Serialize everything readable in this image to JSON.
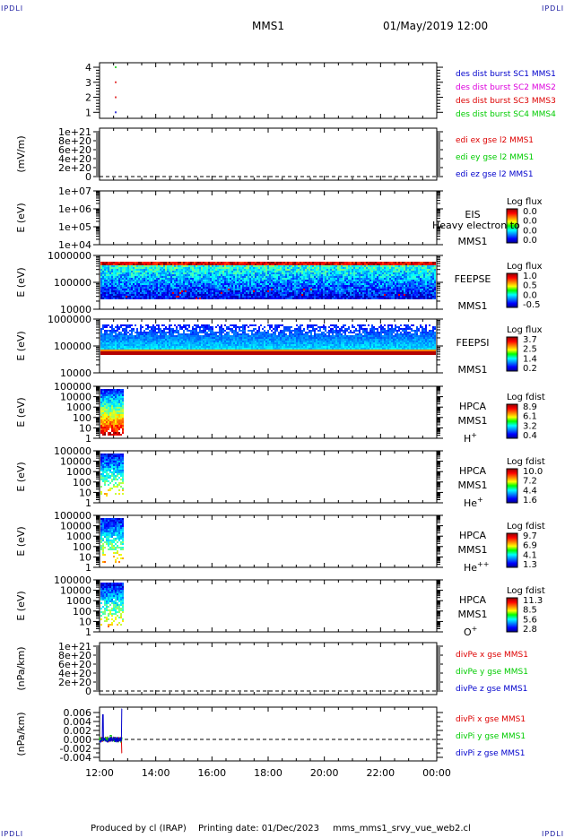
{
  "header": {
    "corner_label": "IPDLI",
    "mission": "MMS1",
    "datetime": "01/May/2019 12:00"
  },
  "footer": {
    "produced_by": "Produced by cl (IRAP)",
    "printing_date": "Printing date: 01/Dec/2023",
    "script_name": "mms_mms1_srvy_vue_web2.cl"
  },
  "x_ticks": [
    "12:00",
    "14:00",
    "16:00",
    "18:00",
    "20:00",
    "22:00",
    "00:00"
  ],
  "overlay_text": "Heavy electron to",
  "colors": {
    "blue": "#0000cc",
    "magenta": "#dd00dd",
    "red": "#dd0000",
    "green": "#00cc00"
  },
  "chart_data": [
    {
      "type": "scatter",
      "id": "burst",
      "ylabel": "",
      "yticks": [
        "1",
        "2",
        "3",
        "4"
      ],
      "ylim": [
        0.6,
        4.3
      ],
      "series": [
        {
          "name": "des dist burst SC1 MMS1",
          "color": "blue"
        },
        {
          "name": "des dist burst SC2 MMS2",
          "color": "magenta"
        },
        {
          "name": "des dist burst SC3 MMS3",
          "color": "red"
        },
        {
          "name": "des dist burst SC4 MMS4",
          "color": "green"
        }
      ],
      "points": [
        {
          "x": 12.55,
          "y": 4,
          "color": "green"
        },
        {
          "x": 12.55,
          "y": 3,
          "color": "red"
        },
        {
          "x": 12.55,
          "y": 2,
          "color": "red"
        },
        {
          "x": 12.55,
          "y": 1,
          "color": "blue"
        }
      ]
    },
    {
      "type": "line",
      "id": "edi",
      "ylabel": "(mV/m)",
      "yticks": [
        "0",
        "2e+20",
        "4e+20",
        "6e+20",
        "8e+20",
        "1e+21"
      ],
      "series": [
        {
          "name": "edi ex gse l2 MMS1",
          "color": "red"
        },
        {
          "name": "edi ey gse l2 MMS1",
          "color": "green"
        },
        {
          "name": "edi ez gse l2 MMS1",
          "color": "blue"
        }
      ]
    },
    {
      "type": "heatmap",
      "id": "eis",
      "ylabel": "E (eV)",
      "yticks": [
        "1e+04",
        "1e+05",
        "1e+06",
        "1e+07"
      ],
      "instrument": [
        "EIS",
        "MMS1"
      ],
      "colorbar_title": "Log flux",
      "colorbar_ticks": [
        "0.0",
        "0.0",
        "0.0",
        "0.0"
      ]
    },
    {
      "type": "heatmap",
      "id": "feepse",
      "ylabel": "E (eV)",
      "yticks": [
        "10000",
        "100000",
        "1000000"
      ],
      "instrument": [
        "FEEPSE",
        "MMS1"
      ],
      "colorbar_title": "Log flux",
      "colorbar_ticks": [
        "1.0",
        "0.5",
        "0.0",
        "-0.5"
      ]
    },
    {
      "type": "heatmap",
      "id": "feepsi",
      "ylabel": "E (eV)",
      "yticks": [
        "10000",
        "100000",
        "1000000"
      ],
      "instrument": [
        "FEEPSI",
        "MMS1"
      ],
      "colorbar_title": "Log flux",
      "colorbar_ticks": [
        "3.7",
        "2.5",
        "1.4",
        "0.2"
      ]
    },
    {
      "type": "heatmap",
      "id": "hpca-h",
      "ylabel": "E (eV)",
      "yticks": [
        "1",
        "10",
        "100",
        "1000",
        "10000",
        "100000"
      ],
      "instrument": [
        "HPCA",
        "MMS1"
      ],
      "species": "H",
      "species_sup": "+",
      "colorbar_title": "Log fdist",
      "colorbar_ticks": [
        "8.9",
        "6.1",
        "3.2",
        "0.4"
      ]
    },
    {
      "type": "heatmap",
      "id": "hpca-he",
      "ylabel": "E (eV)",
      "yticks": [
        "1",
        "10",
        "100",
        "1000",
        "10000",
        "100000"
      ],
      "instrument": [
        "HPCA",
        "MMS1"
      ],
      "species": "He",
      "species_sup": "+",
      "colorbar_title": "Log fdist",
      "colorbar_ticks": [
        "10.0",
        "7.2",
        "4.4",
        "1.6"
      ]
    },
    {
      "type": "heatmap",
      "id": "hpca-hepp",
      "ylabel": "E (eV)",
      "yticks": [
        "1",
        "10",
        "100",
        "1000",
        "10000",
        "100000"
      ],
      "instrument": [
        "HPCA",
        "MMS1"
      ],
      "species": "He",
      "species_sup": "++",
      "colorbar_title": "Log fdist",
      "colorbar_ticks": [
        "9.7",
        "6.9",
        "4.1",
        "1.3"
      ]
    },
    {
      "type": "heatmap",
      "id": "hpca-o",
      "ylabel": "E (eV)",
      "yticks": [
        "1",
        "10",
        "100",
        "1000",
        "10000",
        "100000"
      ],
      "instrument": [
        "HPCA",
        "MMS1"
      ],
      "species": "O",
      "species_sup": "+",
      "colorbar_title": "Log fdist",
      "colorbar_ticks": [
        "11.3",
        "8.5",
        "5.6",
        "2.8"
      ]
    },
    {
      "type": "line",
      "id": "divpe",
      "ylabel": "(nPa/km)",
      "yticks": [
        "0",
        "2e+20",
        "4e+20",
        "6e+20",
        "8e+20",
        "1e+21"
      ],
      "series": [
        {
          "name": "divPe x gse MMS1",
          "color": "red"
        },
        {
          "name": "divPe y gse MMS1",
          "color": "green"
        },
        {
          "name": "divPe z gse MMS1",
          "color": "blue"
        }
      ]
    },
    {
      "type": "line",
      "id": "divpi",
      "ylabel": "(nPa/km)",
      "yticks": [
        "-0.004",
        "-0.002",
        "0.000",
        "0.002",
        "0.004",
        "0.006"
      ],
      "ylim": [
        -0.0048,
        0.0072
      ],
      "series": [
        {
          "name": "divPi x gse MMS1",
          "color": "red"
        },
        {
          "name": "divPi y gse MMS1",
          "color": "green"
        },
        {
          "name": "divPi z gse MMS1",
          "color": "blue"
        }
      ]
    }
  ]
}
